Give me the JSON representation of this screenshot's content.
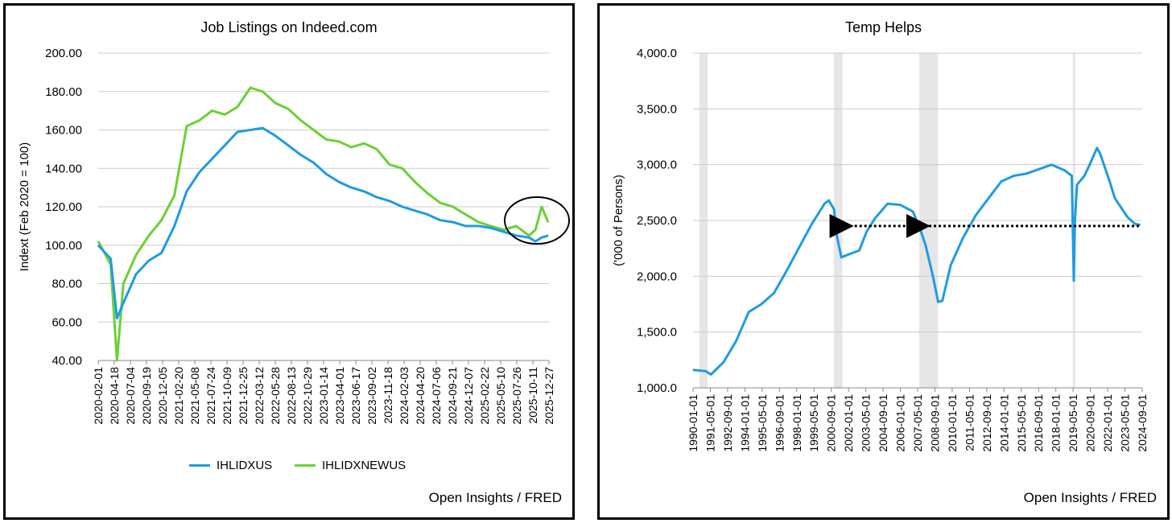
{
  "chart_data": [
    {
      "type": "line",
      "title": "Job Listings on Indeed.com",
      "xlabel": "",
      "ylabel": "Indext (Feb 2020 = 100)",
      "ylim": [
        40,
        200
      ],
      "yticks": [
        "40.00",
        "60.00",
        "80.00",
        "100.00",
        "120.00",
        "140.00",
        "160.00",
        "180.00",
        "200.00"
      ],
      "grid": true,
      "legend_position": "bottom",
      "annotation": "circle around late-2025 values",
      "x_tick_labels": [
        "2020-02-01",
        "2020-04-18",
        "2020-07-04",
        "2020-09-19",
        "2020-12-05",
        "2021-02-20",
        "2021-05-08",
        "2021-07-24",
        "2021-10-09",
        "2021-12-25",
        "2022-03-12",
        "2022-05-28",
        "2022-08-13",
        "2022-10-29",
        "2023-01-14",
        "2023-04-01",
        "2023-06-17",
        "2023-09-02",
        "2023-11-18",
        "2024-02-03",
        "2024-04-20",
        "2024-07-06",
        "2024-09-21",
        "2024-12-07",
        "2025-02-22",
        "2025-05-10",
        "2025-07-26",
        "2025-10-11",
        "2025-12-27"
      ],
      "x": [
        "2020-02-01",
        "2020-04-01",
        "2020-05-01",
        "2020-06-01",
        "2020-08-01",
        "2020-10-01",
        "2020-12-01",
        "2021-02-01",
        "2021-04-01",
        "2021-06-01",
        "2021-08-01",
        "2021-10-01",
        "2021-12-01",
        "2022-02-01",
        "2022-04-01",
        "2022-06-01",
        "2022-08-01",
        "2022-10-01",
        "2022-12-01",
        "2023-02-01",
        "2023-04-01",
        "2023-06-01",
        "2023-08-01",
        "2023-10-01",
        "2023-12-01",
        "2024-02-01",
        "2024-04-01",
        "2024-06-01",
        "2024-08-01",
        "2024-10-01",
        "2024-12-01",
        "2025-02-01",
        "2025-04-01",
        "2025-06-01",
        "2025-08-01",
        "2025-10-01",
        "2025-11-01",
        "2025-12-01",
        "2026-01-01"
      ],
      "series": [
        {
          "name": "IHLIDXUS",
          "color": "#1f9be3",
          "values": [
            100,
            93,
            62,
            70,
            85,
            92,
            96,
            110,
            128,
            138,
            145,
            152,
            159,
            160,
            161,
            157,
            152,
            147,
            143,
            137,
            133,
            130,
            128,
            125,
            123,
            120,
            118,
            116,
            113,
            112,
            110,
            110,
            109,
            107,
            105,
            104,
            102,
            104,
            105
          ]
        },
        {
          "name": "IHLIDXNEWUS",
          "color": "#6ad134",
          "values": [
            102,
            90,
            40,
            80,
            95,
            105,
            113,
            126,
            162,
            165,
            170,
            168,
            172,
            182,
            180,
            174,
            171,
            165,
            160,
            155,
            154,
            151,
            153,
            150,
            142,
            140,
            133,
            127,
            122,
            120,
            116,
            112,
            110,
            108,
            110,
            105,
            108,
            120,
            112
          ]
        }
      ]
    },
    {
      "type": "line",
      "title": "Temp Helps",
      "xlabel": "",
      "ylabel": "('000 of Persons)",
      "ylim": [
        1000,
        4000
      ],
      "yticks": [
        "1,000.0",
        "1,500.0",
        "2,000.0",
        "2,500.0",
        "3,000.0",
        "3,500.0",
        "4,000.0"
      ],
      "grid": true,
      "annotation": "recession shading; dotted arrows at about 2,450",
      "recessions": [
        [
          "1990-07-01",
          "1991-03-01"
        ],
        [
          "2001-03-01",
          "2001-11-01"
        ],
        [
          "2007-12-01",
          "2009-06-01"
        ],
        [
          "2020-02-01",
          "2020-04-01"
        ]
      ],
      "reference_level": 2450,
      "x_tick_labels": [
        "1990-01-01",
        "1991-05-01",
        "1992-09-01",
        "1994-01-01",
        "1995-05-01",
        "1996-09-01",
        "1998-01-01",
        "1999-05-01",
        "2000-09-01",
        "2002-01-01",
        "2003-05-01",
        "2004-09-01",
        "2006-01-01",
        "2007-05-01",
        "2008-09-01",
        "2010-01-01",
        "2011-05-01",
        "2012-09-01",
        "2014-01-01",
        "2015-05-01",
        "2016-09-01",
        "2018-01-01",
        "2019-05-01",
        "2020-09-01",
        "2022-01-01",
        "2023-05-01",
        "2024-09-01"
      ],
      "x": [
        "1990-01-01",
        "1991-01-01",
        "1991-06-01",
        "1992-06-01",
        "1993-06-01",
        "1994-06-01",
        "1995-06-01",
        "1996-06-01",
        "1997-06-01",
        "1998-06-01",
        "1999-06-01",
        "2000-06-01",
        "2000-10-01",
        "2001-03-01",
        "2001-06-01",
        "2001-10-01",
        "2002-06-01",
        "2003-03-01",
        "2003-10-01",
        "2004-06-01",
        "2005-06-01",
        "2006-06-01",
        "2007-06-01",
        "2008-01-01",
        "2008-06-01",
        "2009-01-01",
        "2009-06-01",
        "2009-10-01",
        "2010-06-01",
        "2011-06-01",
        "2012-06-01",
        "2013-06-01",
        "2014-06-01",
        "2015-06-01",
        "2016-06-01",
        "2017-06-01",
        "2018-06-01",
        "2019-06-01",
        "2020-01-01",
        "2020-03-01",
        "2020-04-01",
        "2020-06-01",
        "2021-01-01",
        "2021-06-01",
        "2022-01-01",
        "2022-04-01",
        "2023-01-01",
        "2023-06-01",
        "2024-01-01",
        "2024-06-01",
        "2025-01-01",
        "2025-06-01"
      ],
      "series": [
        {
          "name": "",
          "color": "#1f9be3",
          "values": [
            1160,
            1150,
            1120,
            1230,
            1420,
            1680,
            1750,
            1850,
            2050,
            2260,
            2470,
            2650,
            2680,
            2600,
            2350,
            2170,
            2200,
            2230,
            2400,
            2520,
            2650,
            2640,
            2580,
            2420,
            2280,
            2000,
            1770,
            1780,
            2100,
            2350,
            2550,
            2700,
            2850,
            2900,
            2920,
            2960,
            3000,
            2950,
            2900,
            1960,
            2500,
            2820,
            2900,
            3000,
            3150,
            3100,
            2850,
            2700,
            2600,
            2530,
            2470,
            2460
          ]
        }
      ]
    }
  ],
  "source_left": "Open Insights / FRED",
  "source_right": "Open Insights / FRED"
}
